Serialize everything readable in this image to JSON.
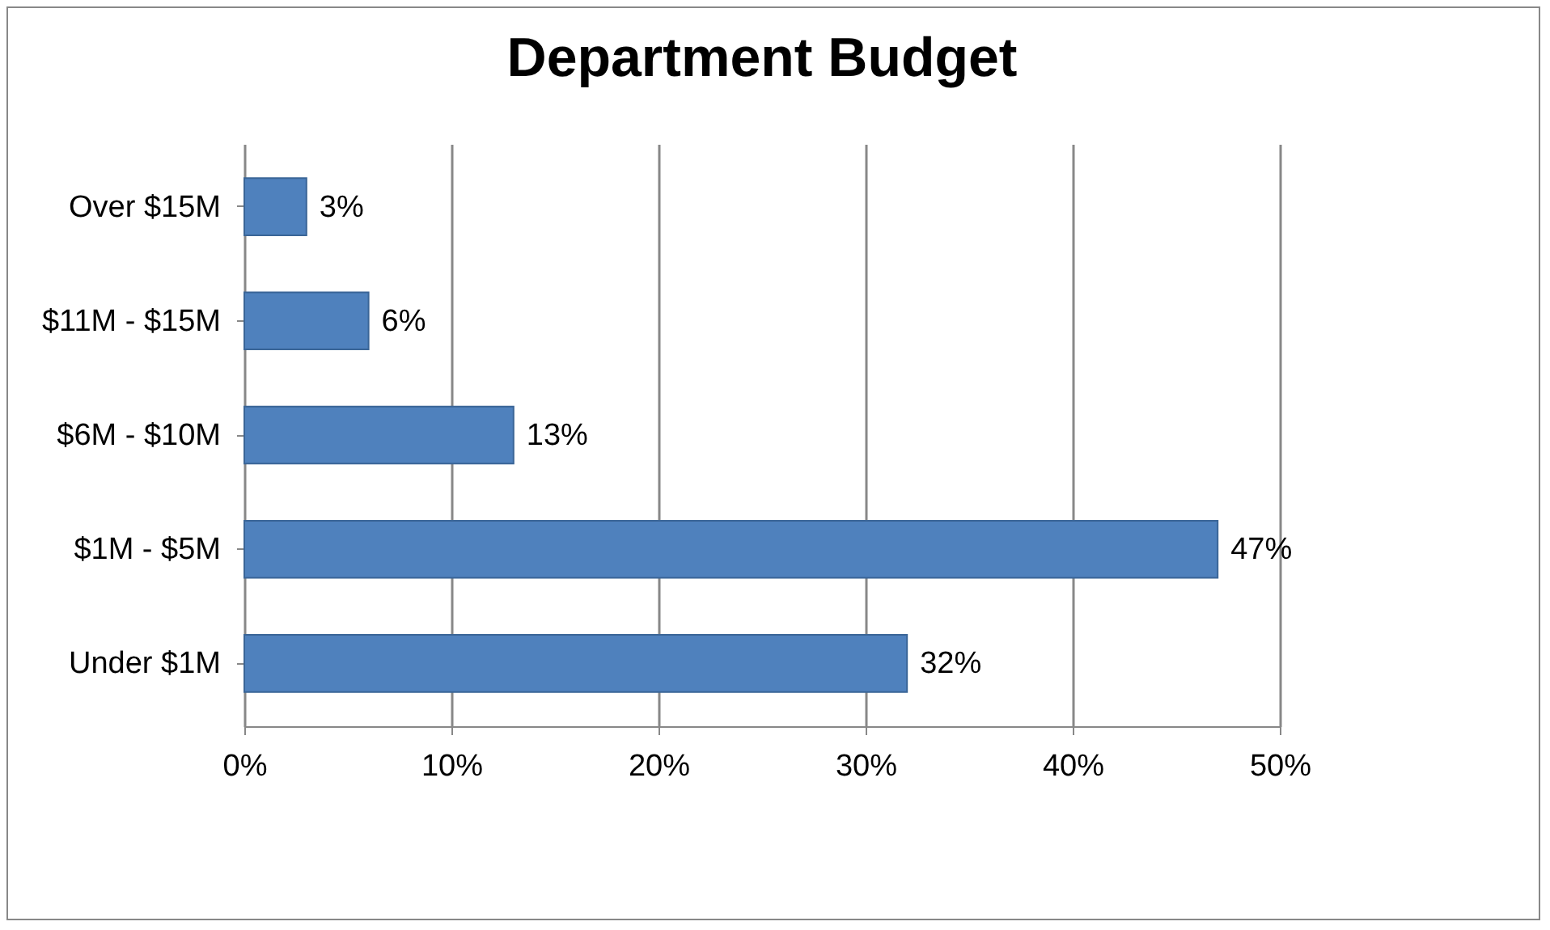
{
  "chart_data": {
    "type": "bar",
    "orientation": "horizontal",
    "title": "Department Budget",
    "categories": [
      "Over $15M",
      "$11M - $15M",
      "$6M - $10M",
      "$1M - $5M",
      "Under $1M"
    ],
    "values": [
      3,
      6,
      13,
      47,
      32
    ],
    "value_labels": [
      "3%",
      "6%",
      "13%",
      "47%",
      "32%"
    ],
    "color": "#4f81bd",
    "xlim": [
      0,
      50
    ],
    "xticks": [
      {
        "value": 0,
        "label": "0%"
      },
      {
        "value": 10,
        "label": "10%"
      },
      {
        "value": 20,
        "label": "20%"
      },
      {
        "value": 30,
        "label": "30%"
      },
      {
        "value": 40,
        "label": "40%"
      },
      {
        "value": 50,
        "label": "50%"
      }
    ],
    "grid": "x"
  }
}
